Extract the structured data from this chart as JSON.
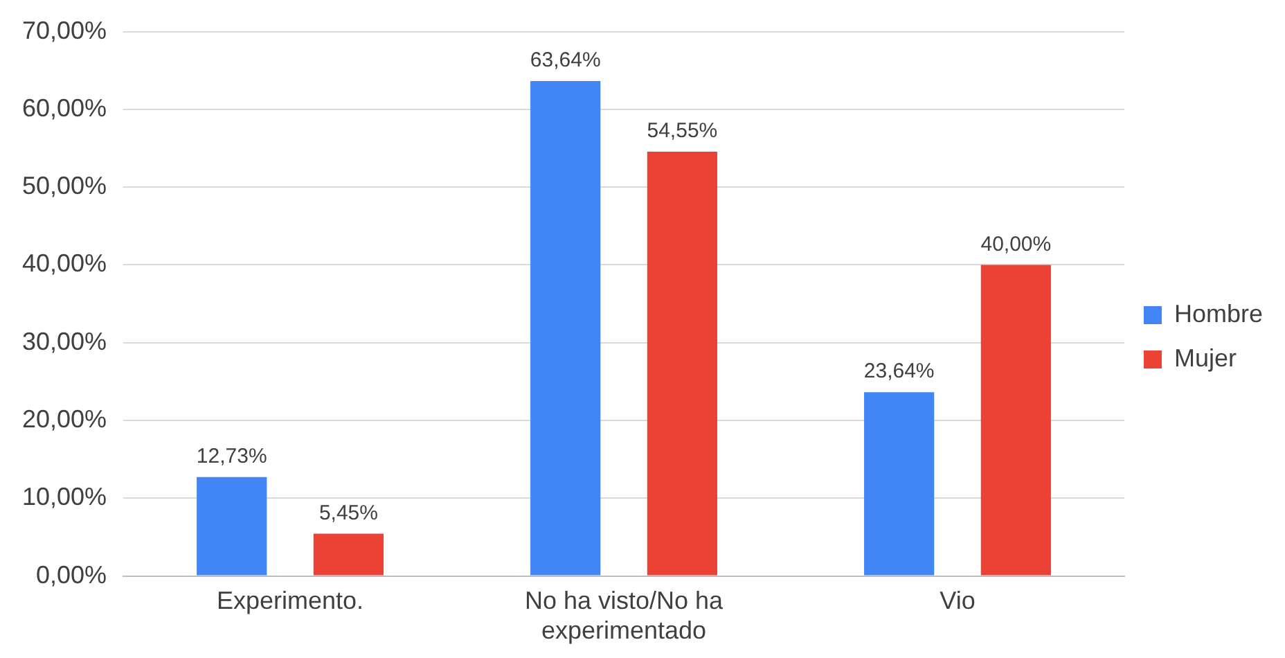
{
  "chart_data": {
    "type": "bar",
    "categories": [
      "Experimento.",
      "No ha visto/No ha experimentado",
      "Vio"
    ],
    "series": [
      {
        "name": "Hombre",
        "color": "#4285f4",
        "values": [
          12.73,
          63.64,
          23.64
        ],
        "value_labels": [
          "12,73%",
          "63,64%",
          "23,64%"
        ]
      },
      {
        "name": "Mujer",
        "color": "#ea4335",
        "values": [
          5.45,
          54.55,
          40.0
        ],
        "value_labels": [
          "5,45%",
          "54,55%",
          "40,00%"
        ]
      }
    ],
    "ylim": [
      0,
      70
    ],
    "yticks": [
      {
        "value": 0,
        "label": "0,00%"
      },
      {
        "value": 10,
        "label": "10,00%"
      },
      {
        "value": 20,
        "label": "20,00%"
      },
      {
        "value": 30,
        "label": "30,00%"
      },
      {
        "value": 40,
        "label": "40,00%"
      },
      {
        "value": 50,
        "label": "50,00%"
      },
      {
        "value": 60,
        "label": "60,00%"
      },
      {
        "value": 70,
        "label": "70,00%"
      }
    ],
    "grid": "y",
    "legend": "right"
  }
}
